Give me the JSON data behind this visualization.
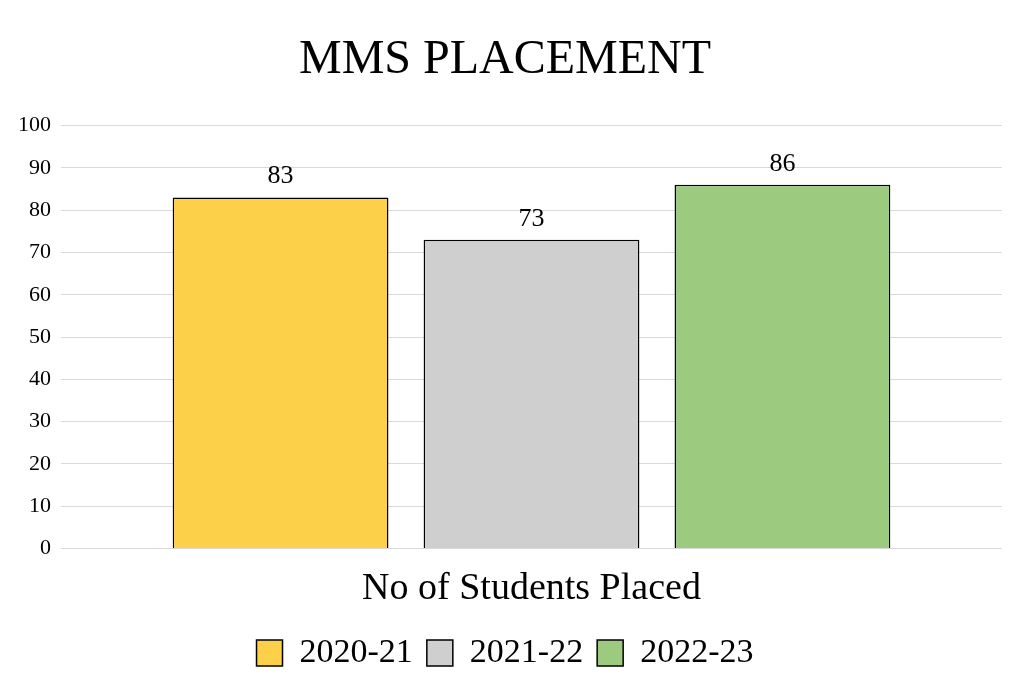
{
  "chart_data": {
    "type": "bar",
    "title": "MMS PLACEMENT",
    "categories": [
      "No of Students Placed"
    ],
    "series": [
      {
        "name": "2020-21",
        "color": "#fdd04a",
        "values": [
          83
        ]
      },
      {
        "name": "2021-22",
        "color": "#cfcfcf",
        "values": [
          73
        ]
      },
      {
        "name": "2022-23",
        "color": "#9ccb80",
        "values": [
          86
        ]
      }
    ],
    "ylim": [
      0,
      100
    ],
    "yticks": [
      0,
      10,
      20,
      30,
      40,
      50,
      60,
      70,
      80,
      90,
      100
    ],
    "grid": "y",
    "legend": "bottom",
    "data_labels": true
  }
}
